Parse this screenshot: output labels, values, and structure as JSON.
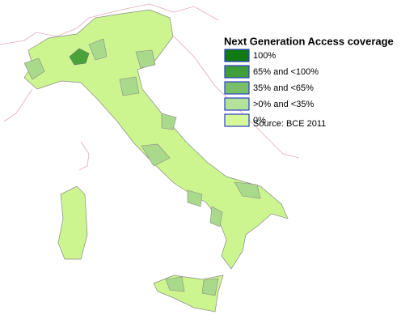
{
  "legend": {
    "title": "Next Generation Access coverage",
    "items": [
      {
        "label": "100%",
        "color": "#127a12"
      },
      {
        "label": "65% and <100%",
        "color": "#3f9e3a"
      },
      {
        "label": "35% and <65%",
        "color": "#79bf6a"
      },
      {
        "label": ">0% and <35%",
        "color": "#b3e39a"
      },
      {
        "label": "0%",
        "color": "#d6f89a"
      }
    ]
  },
  "source": "Source: BCE 2011"
}
